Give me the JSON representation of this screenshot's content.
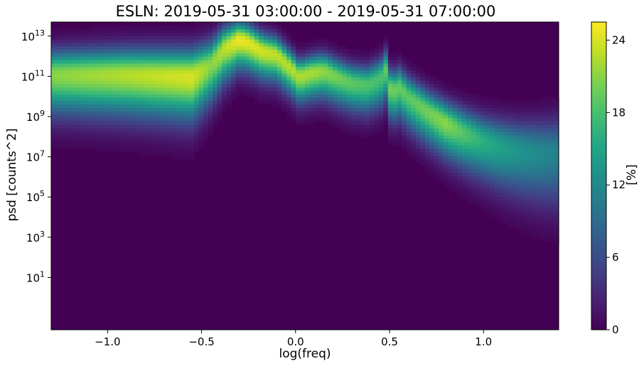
{
  "chart_data": {
    "type": "heatmap",
    "title": "ESLN: 2019-05-31 03:00:00 - 2019-05-31 07:00:00",
    "xlabel": "log(freq)",
    "ylabel": "psd [counts^2]",
    "xlim": [
      -1.3,
      1.4
    ],
    "ylim_log10": [
      -1.6,
      13.7
    ],
    "x_ticks": [
      {
        "value": -1.0,
        "label": "−1.0"
      },
      {
        "value": -0.5,
        "label": "−0.5"
      },
      {
        "value": 0.0,
        "label": "0.0"
      },
      {
        "value": 0.5,
        "label": "0.5"
      },
      {
        "value": 1.0,
        "label": "1.0"
      }
    ],
    "y_ticks": [
      {
        "exp": 13,
        "base": "10",
        "sup": "13"
      },
      {
        "exp": 11,
        "base": "10",
        "sup": "11"
      },
      {
        "exp": 9,
        "base": "10",
        "sup": "9"
      },
      {
        "exp": 7,
        "base": "10",
        "sup": "7"
      },
      {
        "exp": 5,
        "base": "10",
        "sup": "5"
      },
      {
        "exp": 3,
        "base": "10",
        "sup": "3"
      },
      {
        "exp": 1,
        "base": "10",
        "sup": "1"
      }
    ],
    "colorbar": {
      "label": "[%]",
      "colormap": "viridis",
      "range": [
        0,
        25.5
      ],
      "ticks": [
        {
          "value": 0,
          "label": "0"
        },
        {
          "value": 6,
          "label": "6"
        },
        {
          "value": 12,
          "label": "12"
        },
        {
          "value": 18,
          "label": "18"
        },
        {
          "value": 24,
          "label": "24"
        }
      ]
    },
    "peak_curve": {
      "description_units": "x = log10(freq), y = log10(psd) of the most-populated bin",
      "points": [
        [
          -1.3,
          11.1
        ],
        [
          -0.9,
          11.1
        ],
        [
          -0.55,
          11.0
        ],
        [
          -0.45,
          11.6
        ],
        [
          -0.38,
          12.4
        ],
        [
          -0.3,
          12.85
        ],
        [
          -0.25,
          12.7
        ],
        [
          -0.18,
          12.3
        ],
        [
          -0.1,
          12.1
        ],
        [
          -0.02,
          11.4
        ],
        [
          0.02,
          11.0
        ],
        [
          0.08,
          11.2
        ],
        [
          0.15,
          11.3
        ],
        [
          0.22,
          11.0
        ],
        [
          0.3,
          10.7
        ],
        [
          0.38,
          10.6
        ],
        [
          0.45,
          10.9
        ],
        [
          0.48,
          11.3
        ],
        [
          0.51,
          10.2
        ],
        [
          0.55,
          10.5
        ],
        [
          0.6,
          10.0
        ],
        [
          0.7,
          9.3
        ],
        [
          0.8,
          8.7
        ],
        [
          0.9,
          8.2
        ],
        [
          1.0,
          7.8
        ],
        [
          1.1,
          7.5
        ],
        [
          1.2,
          7.3
        ],
        [
          1.3,
          7.2
        ],
        [
          1.4,
          7.2
        ]
      ],
      "peak_percent": [
        [
          -1.3,
          21
        ],
        [
          -0.55,
          24
        ],
        [
          -0.45,
          21
        ],
        [
          -0.3,
          25
        ],
        [
          -0.1,
          23
        ],
        [
          0.1,
          22
        ],
        [
          0.3,
          19
        ],
        [
          0.45,
          18
        ],
        [
          0.5,
          20
        ],
        [
          0.6,
          19
        ],
        [
          0.8,
          21
        ],
        [
          1.0,
          16
        ],
        [
          1.2,
          13
        ],
        [
          1.4,
          11
        ]
      ],
      "width_log10": [
        [
          -1.3,
          0.8
        ],
        [
          -0.55,
          0.9
        ],
        [
          -0.3,
          0.6
        ],
        [
          0.0,
          0.55
        ],
        [
          0.4,
          0.6
        ],
        [
          0.6,
          0.65
        ],
        [
          0.8,
          0.7
        ],
        [
          1.0,
          0.8
        ],
        [
          1.2,
          0.95
        ],
        [
          1.4,
          1.1
        ]
      ]
    }
  }
}
